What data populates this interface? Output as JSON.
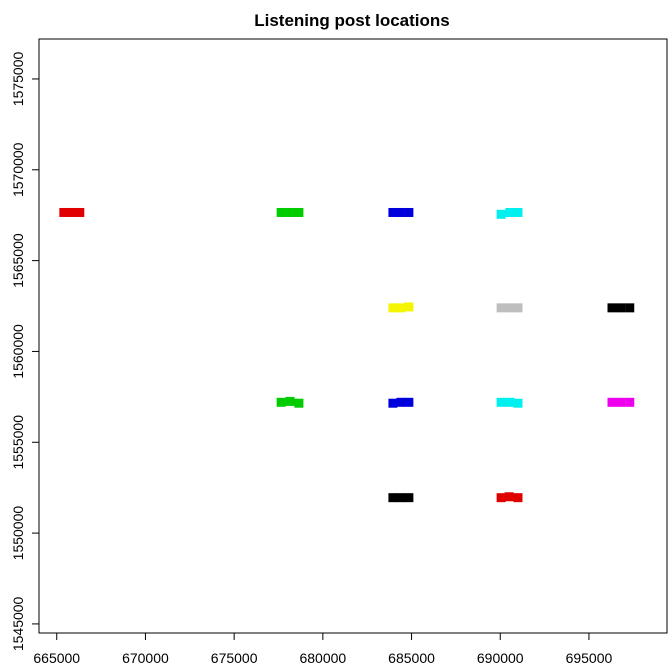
{
  "chart_data": {
    "type": "scatter",
    "title": "Listening post locations",
    "xlabel": "",
    "ylabel": "",
    "xlim": [
      664000,
      699400
    ],
    "ylim": [
      1544500,
      1577200
    ],
    "x_ticks": [
      665000,
      670000,
      675000,
      680000,
      685000,
      690000,
      695000
    ],
    "x_tick_labels": [
      "665000",
      "670000",
      "675000",
      "680000",
      "685000",
      "690000",
      "695000"
    ],
    "y_ticks": [
      1545000,
      1550000,
      1555000,
      1560000,
      1565000,
      1570000,
      1575000
    ],
    "y_tick_labels": [
      "1545000",
      "1550000",
      "1555000",
      "1560000",
      "1565000",
      "1570000",
      "1575000"
    ],
    "grid": false,
    "legend": "none",
    "marker": "square",
    "points": [
      {
        "x": 665400,
        "y": 1567650,
        "color": "#e00000"
      },
      {
        "x": 665850,
        "y": 1567650,
        "color": "#e00000"
      },
      {
        "x": 666300,
        "y": 1567650,
        "color": "#e00000"
      },
      {
        "x": 677650,
        "y": 1567650,
        "color": "#00cc00"
      },
      {
        "x": 678150,
        "y": 1567650,
        "color": "#00cc00"
      },
      {
        "x": 678650,
        "y": 1567650,
        "color": "#00cc00"
      },
      {
        "x": 683950,
        "y": 1567650,
        "color": "#0000dd"
      },
      {
        "x": 684400,
        "y": 1567650,
        "color": "#0000dd"
      },
      {
        "x": 684850,
        "y": 1567650,
        "color": "#0000dd"
      },
      {
        "x": 690050,
        "y": 1567550,
        "color": "#00f0f0"
      },
      {
        "x": 690550,
        "y": 1567650,
        "color": "#00f0f0"
      },
      {
        "x": 691000,
        "y": 1567650,
        "color": "#00f0f0"
      },
      {
        "x": 683950,
        "y": 1562400,
        "color": "#f5f500"
      },
      {
        "x": 684400,
        "y": 1562400,
        "color": "#f5f500"
      },
      {
        "x": 684850,
        "y": 1562450,
        "color": "#f5f500"
      },
      {
        "x": 690050,
        "y": 1562400,
        "color": "#bebebe"
      },
      {
        "x": 690550,
        "y": 1562400,
        "color": "#bebebe"
      },
      {
        "x": 691000,
        "y": 1562400,
        "color": "#bebebe"
      },
      {
        "x": 696300,
        "y": 1562400,
        "color": "#000000"
      },
      {
        "x": 696800,
        "y": 1562400,
        "color": "#000000"
      },
      {
        "x": 697300,
        "y": 1562400,
        "color": "#000000"
      },
      {
        "x": 677650,
        "y": 1557200,
        "color": "#00cc00"
      },
      {
        "x": 678150,
        "y": 1557250,
        "color": "#00cc00"
      },
      {
        "x": 678650,
        "y": 1557150,
        "color": "#00cc00"
      },
      {
        "x": 683950,
        "y": 1557150,
        "color": "#0000dd"
      },
      {
        "x": 684400,
        "y": 1557200,
        "color": "#0000dd"
      },
      {
        "x": 684850,
        "y": 1557200,
        "color": "#0000dd"
      },
      {
        "x": 690050,
        "y": 1557200,
        "color": "#00f0f0"
      },
      {
        "x": 690550,
        "y": 1557200,
        "color": "#00f0f0"
      },
      {
        "x": 691000,
        "y": 1557150,
        "color": "#00f0f0"
      },
      {
        "x": 696300,
        "y": 1557200,
        "color": "#ee00ee"
      },
      {
        "x": 696800,
        "y": 1557200,
        "color": "#ee00ee"
      },
      {
        "x": 697300,
        "y": 1557200,
        "color": "#ee00ee"
      },
      {
        "x": 683950,
        "y": 1551950,
        "color": "#000000"
      },
      {
        "x": 684400,
        "y": 1551950,
        "color": "#000000"
      },
      {
        "x": 684850,
        "y": 1551950,
        "color": "#000000"
      },
      {
        "x": 690050,
        "y": 1551950,
        "color": "#e00000"
      },
      {
        "x": 690500,
        "y": 1552000,
        "color": "#e00000"
      },
      {
        "x": 691000,
        "y": 1551950,
        "color": "#e00000"
      }
    ]
  }
}
